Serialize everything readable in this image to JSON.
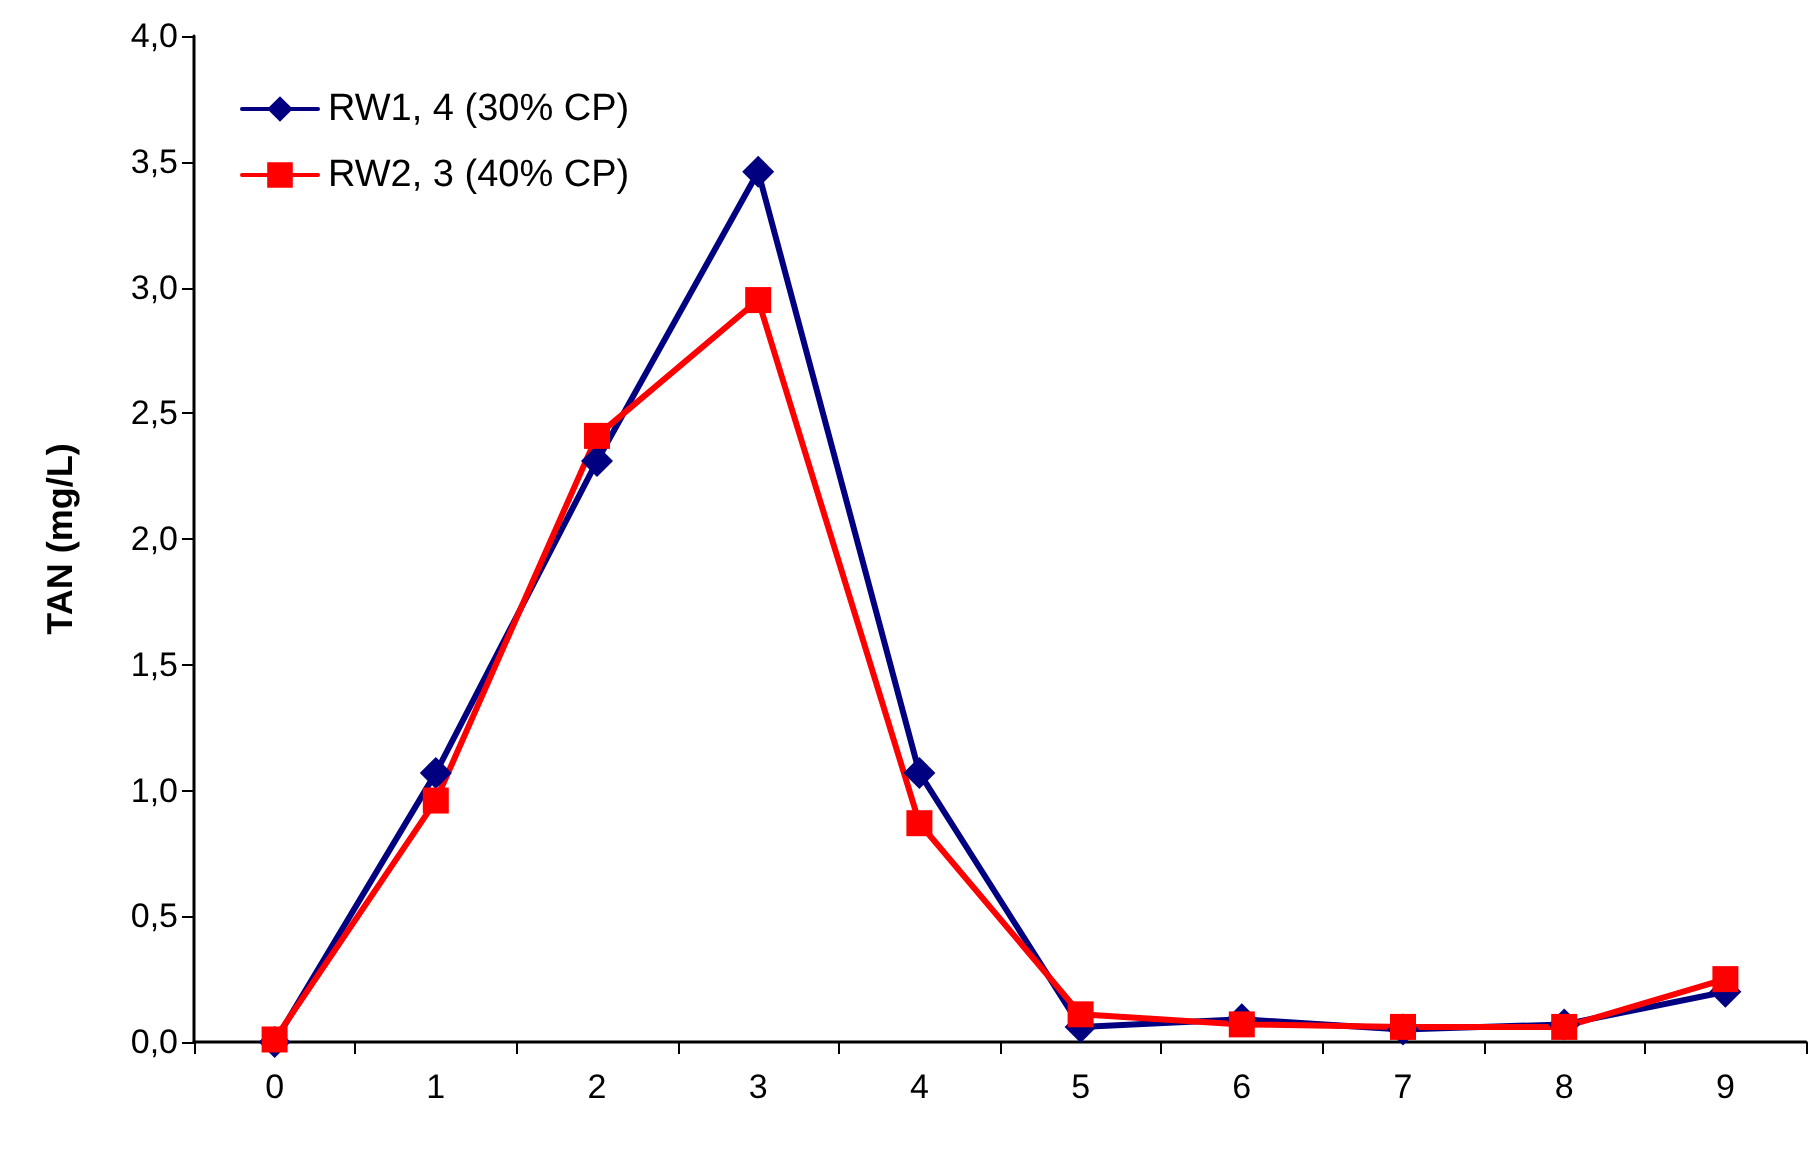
{
  "chart_data": {
    "type": "line",
    "ylabel": "TAN (mg/L)",
    "categories": [
      "0",
      "1",
      "2",
      "3",
      "4",
      "5",
      "6",
      "7",
      "8",
      "9"
    ],
    "series": [
      {
        "name": "RW1, 4 (30% CP)",
        "color": "#000080",
        "marker": "diamond",
        "values": [
          0.0,
          1.07,
          2.31,
          3.46,
          1.07,
          0.06,
          0.09,
          0.05,
          0.07,
          0.2
        ]
      },
      {
        "name": "RW2, 3 (40% CP)",
        "color": "#ff0000",
        "marker": "square",
        "values": [
          0.01,
          0.96,
          2.41,
          2.95,
          0.87,
          0.11,
          0.07,
          0.06,
          0.06,
          0.25
        ]
      }
    ],
    "ylim": [
      0,
      4
    ],
    "yticks": [
      {
        "value": 0,
        "label": "0,0"
      },
      {
        "value": 0.5,
        "label": "0,5"
      },
      {
        "value": 1,
        "label": "1,0"
      },
      {
        "value": 1.5,
        "label": "1,5"
      },
      {
        "value": 2,
        "label": "2,0"
      },
      {
        "value": 2.5,
        "label": "2,5"
      },
      {
        "value": 3,
        "label": "3,0"
      },
      {
        "value": 3.5,
        "label": "3,5"
      },
      {
        "value": 4,
        "label": "4,0"
      }
    ],
    "grid": false,
    "legend": "top left",
    "line_style": "solid"
  }
}
